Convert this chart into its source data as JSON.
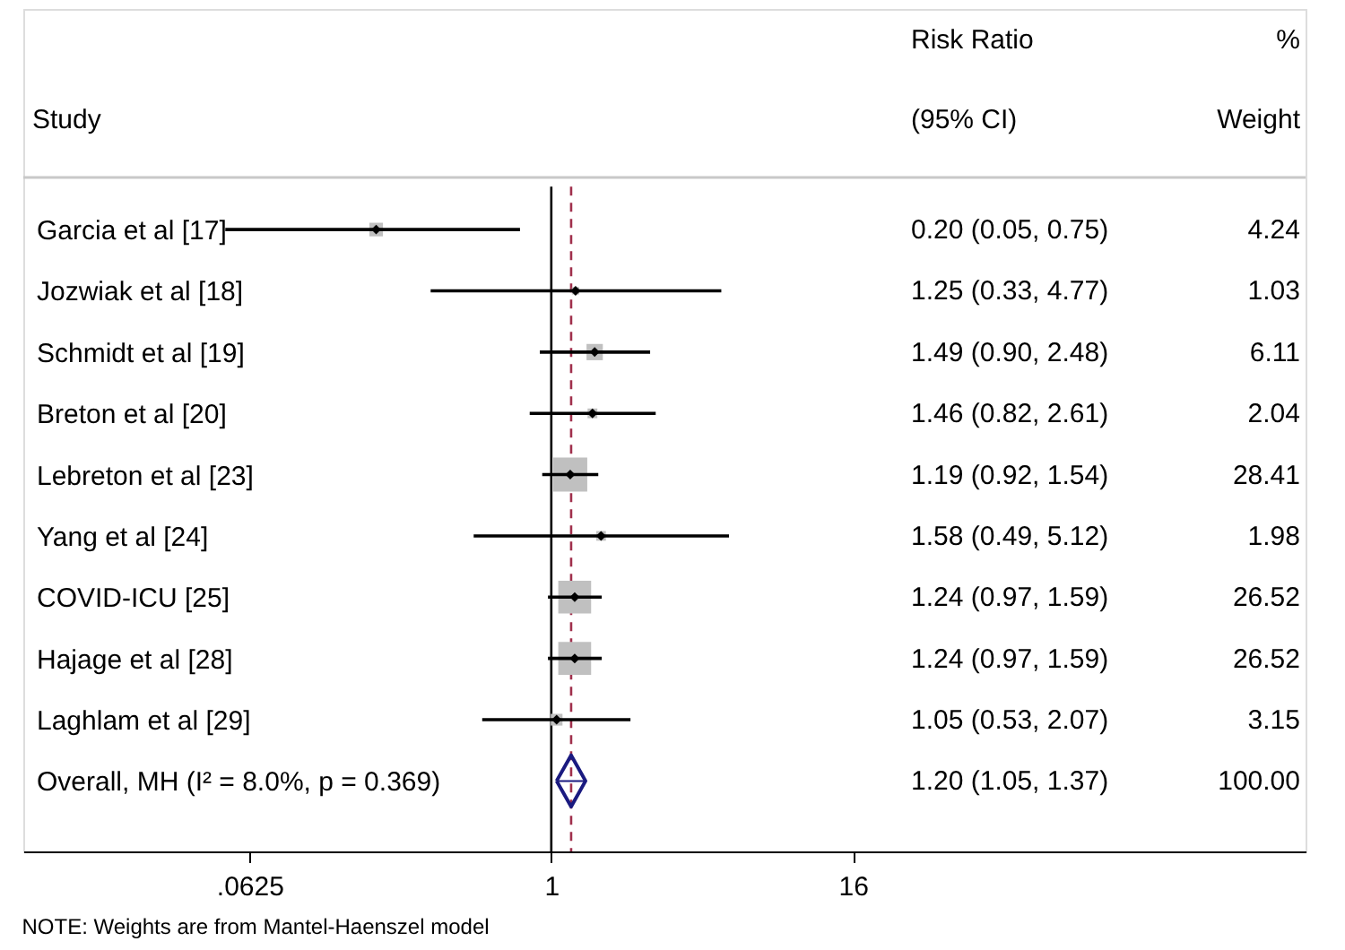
{
  "chart_data": {
    "type": "scatter",
    "orientation": "horizontal",
    "ylabel": "Study",
    "categories": [
      "Garcia et al [17]",
      "Jozwiak et al [18]",
      "Schmidt et al [19]",
      "Breton et al [20]",
      "Lebreton et al [23]",
      "Yang et al [24]",
      "COVID-ICU [25]",
      "Hajage et al [28]",
      "Laghlam et al [29]",
      "Overall, MH (I² = 8.0%, p = 0.369)"
    ],
    "series": [
      {
        "type": "bubble",
        "color": "#c0c0c0",
        "values": [
          0.2,
          1.25,
          1.49,
          1.46,
          1.19,
          1.58,
          1.24,
          1.24,
          1.05,
          null
        ],
        "errors": [
          [
            0.05,
            0.75
          ],
          [
            0.33,
            4.77
          ],
          [
            0.9,
            2.48
          ],
          [
            0.82,
            2.61
          ],
          [
            0.92,
            1.54
          ],
          [
            0.49,
            5.12
          ],
          [
            0.97,
            1.59
          ],
          [
            0.97,
            1.59
          ],
          [
            0.53,
            2.07
          ],
          null
        ],
        "sizes": [
          0.15,
          0.036,
          0.22,
          0.072,
          1,
          0.07,
          0.93,
          0.93,
          0.11,
          null
        ]
      },
      {
        "type": "scatter",
        "marker": "diamond",
        "color": "#1a1a80",
        "values": [
          null,
          null,
          null,
          null,
          null,
          null,
          null,
          null,
          null,
          1.2
        ],
        "errors": [
          null,
          null,
          null,
          null,
          null,
          null,
          null,
          null,
          null,
          [
            1.05,
            1.37
          ]
        ]
      }
    ],
    "xlim": [
      0.0078125,
      1024
    ],
    "xticks": [
      {
        "value": 0.0625,
        "label": ".0625"
      },
      1,
      16
    ],
    "log": "x",
    "ref_lines": [
      {
        "axis": "x",
        "value": 1,
        "color": "#000000",
        "line_style": "solid"
      },
      {
        "axis": "x",
        "value": 1.2,
        "color": "#a0304c",
        "line_style": "dashed"
      }
    ],
    "grid": false,
    "annotations": [
      "Risk Ratio",
      "(95% CI)",
      "%",
      "Weight",
      "0.20 (0.05, 0.75)",
      "1.25 (0.33, 4.77)",
      "1.49 (0.90, 2.48)",
      "1.46 (0.82, 2.61)",
      "1.19 (0.92, 1.54)",
      "1.58 (0.49, 5.12)",
      "1.24 (0.97, 1.59)",
      "1.24 (0.97, 1.59)",
      "1.05 (0.53, 2.07)",
      "1.20 (1.05, 1.37)",
      "4.24",
      "1.03",
      "6.11",
      "2.04",
      "28.41",
      "1.98",
      "26.52",
      "26.52",
      "3.15",
      "100.00",
      "NOTE: Weights are from Mantel-Haenszel model"
    ]
  }
}
